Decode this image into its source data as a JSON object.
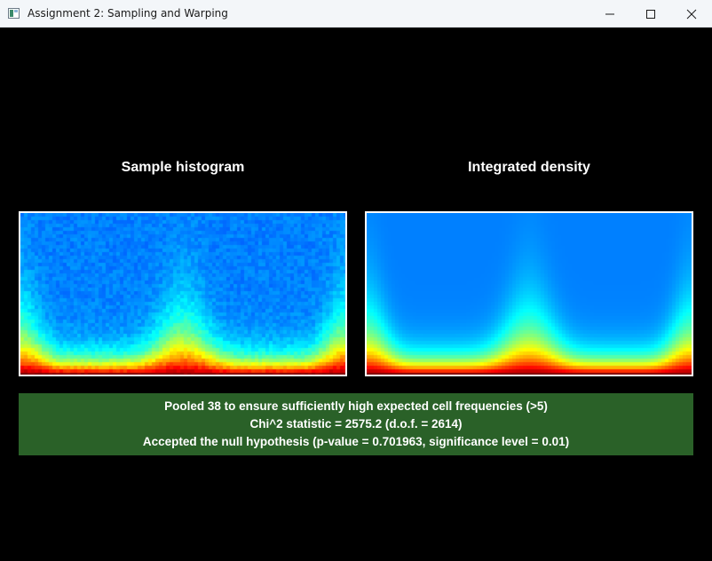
{
  "window": {
    "title": "Assignment 2: Sampling and Warping",
    "controls": [
      "minimize-icon",
      "maximize-icon",
      "close-icon"
    ]
  },
  "headings": {
    "left": "Sample histogram",
    "right": "Integrated density"
  },
  "plots": {
    "colormap": "jet",
    "background_color": "#0000ff"
  },
  "result": {
    "background_color": "#2a6128",
    "line1": "Pooled 38 to ensure sufficiently high expected cell frequencies (>5)",
    "line2": "Chi^2 statistic = 2575.2 (d.o.f. = 2614)",
    "line3": "Accepted the null hypothesis (p-value = 0.701963, significance level = 0.01)"
  }
}
